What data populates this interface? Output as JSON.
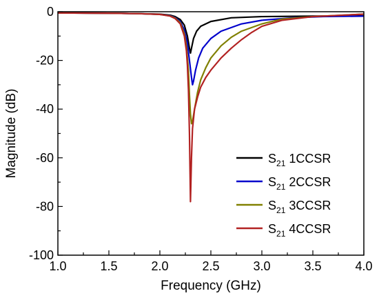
{
  "chart_data": {
    "type": "line",
    "title": "",
    "xlabel": "Frequency (GHz)",
    "ylabel": "Magnitude (dB)",
    "xlim": [
      1.0,
      4.0
    ],
    "ylim": [
      -100,
      0
    ],
    "xticks": [
      "1.0",
      "1.5",
      "2.0",
      "2.5",
      "3.0",
      "3.5",
      "4.0"
    ],
    "yticks": [
      "0",
      "-20",
      "-40",
      "-60",
      "-80",
      "-100"
    ],
    "grid": false,
    "legend_position": "lower-right",
    "series": [
      {
        "name": "S21 1CCSR",
        "legend_main": "S",
        "legend_sub": "21",
        "legend_rest": " 1CCSR",
        "color": "#000000",
        "points": [
          [
            1.0,
            -0.5
          ],
          [
            1.5,
            -0.6
          ],
          [
            1.8,
            -0.8
          ],
          [
            2.0,
            -1.0
          ],
          [
            2.1,
            -1.4
          ],
          [
            2.15,
            -2.0
          ],
          [
            2.2,
            -3.2
          ],
          [
            2.24,
            -5.5
          ],
          [
            2.27,
            -10.0
          ],
          [
            2.29,
            -15.0
          ],
          [
            2.3,
            -17.0
          ],
          [
            2.31,
            -15.0
          ],
          [
            2.33,
            -11.0
          ],
          [
            2.36,
            -8.0
          ],
          [
            2.4,
            -6.0
          ],
          [
            2.5,
            -4.0
          ],
          [
            2.7,
            -2.5
          ],
          [
            3.0,
            -2.0
          ],
          [
            3.5,
            -1.8
          ],
          [
            4.0,
            -1.7
          ]
        ]
      },
      {
        "name": "S21 2CCSR",
        "legend_main": "S",
        "legend_sub": "21",
        "legend_rest": " 2CCSR",
        "color": "#0000cc",
        "points": [
          [
            1.0,
            -0.5
          ],
          [
            1.5,
            -0.6
          ],
          [
            1.8,
            -0.8
          ],
          [
            2.0,
            -1.1
          ],
          [
            2.1,
            -1.6
          ],
          [
            2.15,
            -2.4
          ],
          [
            2.2,
            -4.0
          ],
          [
            2.24,
            -7.5
          ],
          [
            2.27,
            -13.0
          ],
          [
            2.29,
            -20.0
          ],
          [
            2.31,
            -27.0
          ],
          [
            2.32,
            -30.0
          ],
          [
            2.33,
            -28.5
          ],
          [
            2.35,
            -24.0
          ],
          [
            2.38,
            -19.0
          ],
          [
            2.42,
            -15.0
          ],
          [
            2.5,
            -11.0
          ],
          [
            2.6,
            -8.0
          ],
          [
            2.8,
            -5.0
          ],
          [
            3.0,
            -3.5
          ],
          [
            3.3,
            -2.5
          ],
          [
            3.6,
            -2.0
          ],
          [
            4.0,
            -1.8
          ]
        ]
      },
      {
        "name": "S21 3CCSR",
        "legend_main": "S",
        "legend_sub": "21",
        "legend_rest": " 3CCSR",
        "color": "#808000",
        "points": [
          [
            1.0,
            -0.5
          ],
          [
            1.5,
            -0.6
          ],
          [
            1.8,
            -0.8
          ],
          [
            2.0,
            -1.1
          ],
          [
            2.1,
            -1.7
          ],
          [
            2.15,
            -2.6
          ],
          [
            2.2,
            -4.5
          ],
          [
            2.24,
            -9.0
          ],
          [
            2.26,
            -14.0
          ],
          [
            2.28,
            -24.0
          ],
          [
            2.29,
            -34.0
          ],
          [
            2.3,
            -42.0
          ],
          [
            2.31,
            -46.0
          ],
          [
            2.32,
            -45.0
          ],
          [
            2.34,
            -40.0
          ],
          [
            2.37,
            -33.0
          ],
          [
            2.4,
            -28.0
          ],
          [
            2.45,
            -23.0
          ],
          [
            2.5,
            -19.0
          ],
          [
            2.6,
            -14.0
          ],
          [
            2.7,
            -10.5
          ],
          [
            2.8,
            -8.0
          ],
          [
            3.0,
            -5.0
          ],
          [
            3.2,
            -3.0
          ],
          [
            3.5,
            -2.0
          ],
          [
            4.0,
            -1.0
          ]
        ]
      },
      {
        "name": "S21 4CCSR",
        "legend_main": "S",
        "legend_sub": "21",
        "legend_rest": " 4CCSR",
        "color": "#b22222",
        "points": [
          [
            1.0,
            -0.5
          ],
          [
            1.5,
            -0.6
          ],
          [
            1.8,
            -0.8
          ],
          [
            2.0,
            -1.1
          ],
          [
            2.1,
            -1.8
          ],
          [
            2.15,
            -2.8
          ],
          [
            2.2,
            -5.0
          ],
          [
            2.24,
            -10.0
          ],
          [
            2.26,
            -16.0
          ],
          [
            2.27,
            -22.0
          ],
          [
            2.28,
            -32.0
          ],
          [
            2.29,
            -50.0
          ],
          [
            2.3,
            -78.0
          ],
          [
            2.31,
            -60.0
          ],
          [
            2.32,
            -48.0
          ],
          [
            2.34,
            -40.0
          ],
          [
            2.37,
            -35.0
          ],
          [
            2.4,
            -31.0
          ],
          [
            2.45,
            -27.0
          ],
          [
            2.5,
            -24.0
          ],
          [
            2.6,
            -19.0
          ],
          [
            2.7,
            -15.0
          ],
          [
            2.8,
            -11.5
          ],
          [
            2.9,
            -8.5
          ],
          [
            3.0,
            -6.0
          ],
          [
            3.2,
            -3.5
          ],
          [
            3.5,
            -2.0
          ],
          [
            4.0,
            -1.0
          ]
        ]
      }
    ]
  }
}
